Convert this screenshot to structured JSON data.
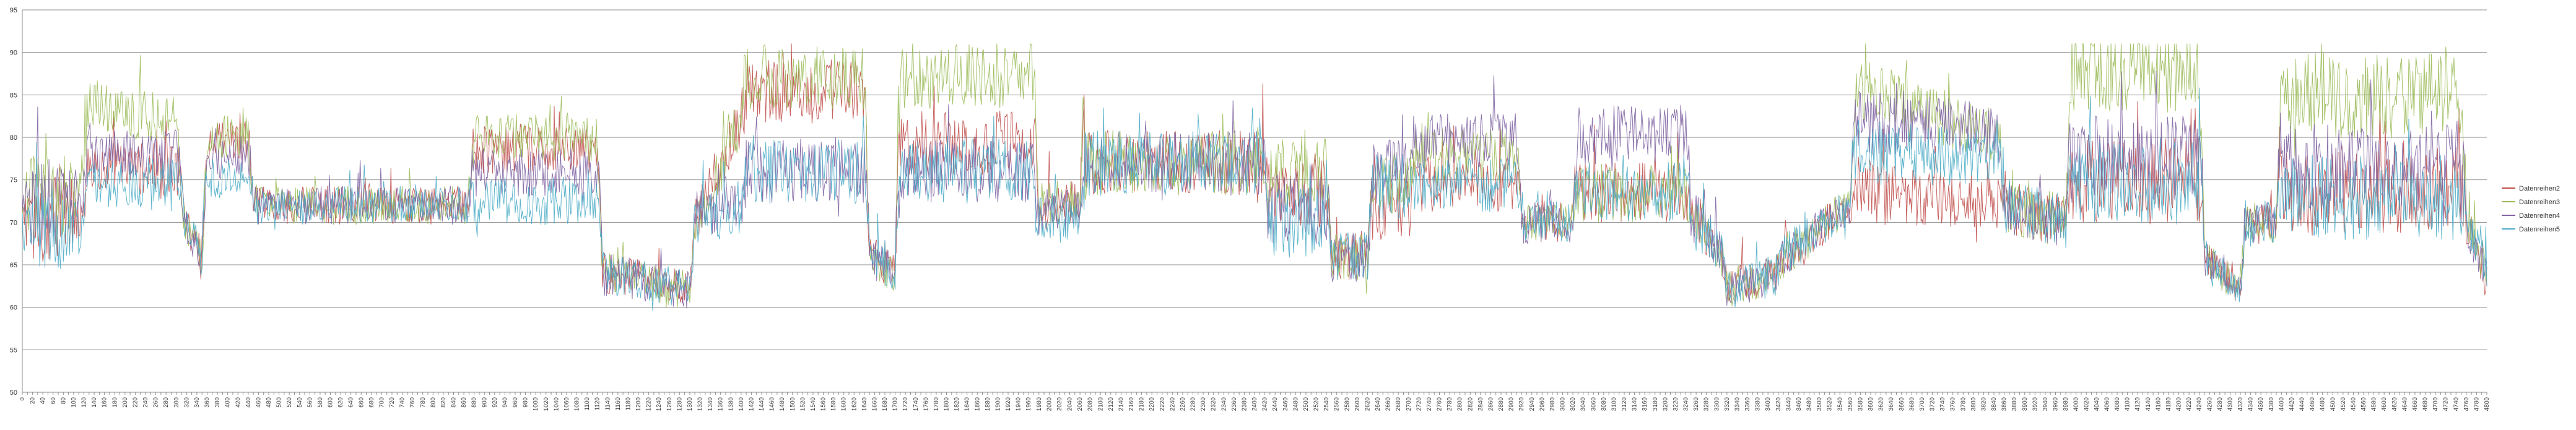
{
  "chart_data": {
    "type": "line",
    "title": "",
    "xlabel": "",
    "ylabel": "",
    "ylim": [
      50,
      95
    ],
    "yticks": [
      50,
      55,
      60,
      65,
      70,
      75,
      80,
      85,
      90,
      95
    ],
    "x_range": [
      0,
      4800
    ],
    "x_tick_step": 10,
    "x_label_step": 20,
    "grid": "horizontal",
    "legend": "right",
    "x_template": {
      "segments": [
        {
          "x": [
            0,
            20,
            60,
            110
          ],
          "low": [
            62,
            55,
            56,
            62
          ],
          "high": [
            70,
            74,
            72,
            74
          ]
        },
        {
          "x": [
            125,
            300
          ],
          "low": [
            75,
            72
          ],
          "high": [
            84,
            82
          ]
        },
        {
          "x": [
            315,
            350
          ],
          "low": [
            64,
            58
          ],
          "high": [
            70,
            66
          ]
        },
        {
          "x": [
            360,
            440
          ],
          "low": [
            72,
            72
          ],
          "high": [
            80,
            80
          ]
        },
        {
          "x": [
            450,
            870
          ],
          "low": [
            65,
            65
          ],
          "high": [
            72,
            72
          ]
        },
        {
          "x": [
            880,
            1120
          ],
          "low": [
            71,
            71
          ],
          "high": [
            80,
            80
          ]
        },
        {
          "x": [
            1130,
            1300
          ],
          "low": [
            56,
            55
          ],
          "high": [
            64,
            62
          ]
        },
        {
          "x": [
            1310,
            1400
          ],
          "low": [
            60,
            72
          ],
          "high": [
            70,
            82
          ]
        },
        {
          "x": [
            1410,
            1640
          ],
          "low": [
            76,
            76
          ],
          "high": [
            88,
            88
          ]
        },
        {
          "x": [
            1650,
            1700
          ],
          "low": [
            58,
            57
          ],
          "high": [
            66,
            64
          ]
        },
        {
          "x": [
            1710,
            1970
          ],
          "low": [
            76,
            76
          ],
          "high": [
            88,
            88
          ]
        },
        {
          "x": [
            1980,
            2060
          ],
          "low": [
            63,
            63
          ],
          "high": [
            72,
            72
          ]
        },
        {
          "x": [
            2070,
            2420
          ],
          "low": [
            77,
            77
          ],
          "high": [
            89,
            89
          ]
        },
        {
          "x": [
            2430,
            2540
          ],
          "low": [
            63,
            63
          ],
          "high": [
            76,
            76
          ]
        },
        {
          "x": [
            2550,
            2620
          ],
          "low": [
            57,
            56
          ],
          "high": [
            66,
            66
          ]
        },
        {
          "x": [
            2630,
            2700
          ],
          "low": [
            64,
            64
          ],
          "high": [
            76,
            76
          ]
        },
        {
          "x": [
            2710,
            2910
          ],
          "low": [
            72,
            72
          ],
          "high": [
            82,
            82
          ]
        },
        {
          "x": [
            2920,
            3020
          ],
          "low": [
            62,
            62
          ],
          "high": [
            70,
            70
          ]
        },
        {
          "x": [
            3030,
            3240
          ],
          "low": [
            71,
            71
          ],
          "high": [
            82,
            82
          ]
        },
        {
          "x": [
            3250,
            3310
          ],
          "low": [
            62,
            58
          ],
          "high": [
            72,
            66
          ]
        },
        {
          "x": [
            3320,
            3420
          ],
          "low": [
            55,
            56
          ],
          "high": [
            62,
            64
          ]
        },
        {
          "x": [
            3430,
            3560
          ],
          "low": [
            58,
            65
          ],
          "high": [
            66,
            72
          ]
        },
        {
          "x": [
            3570,
            3850
          ],
          "low": [
            74,
            70
          ],
          "high": [
            86,
            80
          ]
        },
        {
          "x": [
            3860,
            3980
          ],
          "low": [
            62,
            60
          ],
          "high": [
            72,
            70
          ]
        },
        {
          "x": [
            3990,
            4240
          ],
          "low": [
            72,
            72
          ],
          "high": [
            88,
            88
          ]
        },
        {
          "x": [
            4250,
            4320
          ],
          "low": [
            59,
            56
          ],
          "high": [
            66,
            62
          ]
        },
        {
          "x": [
            4330,
            4390
          ],
          "low": [
            62,
            62
          ],
          "high": [
            70,
            70
          ]
        },
        {
          "x": [
            4400,
            4750
          ],
          "low": [
            71,
            71
          ],
          "high": [
            87,
            87
          ]
        },
        {
          "x": [
            4760,
            4800
          ],
          "low": [
            62,
            55
          ],
          "high": [
            70,
            64
          ]
        }
      ]
    },
    "series": [
      {
        "name": "Datenreihen2",
        "color": "#C0504D",
        "offsets": [
          72,
          76,
          78,
          80,
          82,
          79,
          81,
          84,
          86,
          78,
          79,
          83,
          73,
          74,
          76,
          72,
          74,
          75,
          73,
          71,
          73,
          72,
          72,
          73,
          74,
          79,
          81,
          73,
          76,
          74,
          76,
          74,
          75
        ]
      },
      {
        "name": "Datenreihen3",
        "color": "#9BBB59",
        "offsets": [
          78,
          85,
          80,
          84,
          86,
          82,
          84,
          88,
          88,
          82,
          88,
          89,
          74,
          78,
          80,
          76,
          78,
          74,
          73,
          72,
          75,
          86,
          88,
          80,
          90,
          82,
          88,
          86,
          88,
          82,
          80,
          84,
          86
        ]
      },
      {
        "name": "Datenreihen4",
        "color": "#8064A2",
        "offsets": [
          74,
          78,
          77,
          78,
          80,
          76,
          77,
          72,
          74,
          72,
          72,
          72,
          70,
          72,
          78,
          82,
          80,
          78,
          81,
          72,
          74,
          85,
          82,
          78,
          77,
          76,
          78,
          76,
          74,
          72,
          74,
          73,
          74
        ]
      },
      {
        "name": "Datenreihen5",
        "color": "#4BACC6",
        "offsets": [
          70,
          74,
          74,
          75,
          76,
          72,
          73,
          71,
          71,
          70,
          71,
          71,
          68,
          70,
          74,
          75,
          74,
          74,
          73,
          70,
          72,
          79,
          78,
          75,
          74,
          72,
          73,
          72,
          72,
          70,
          72,
          71,
          72
        ]
      }
    ]
  }
}
